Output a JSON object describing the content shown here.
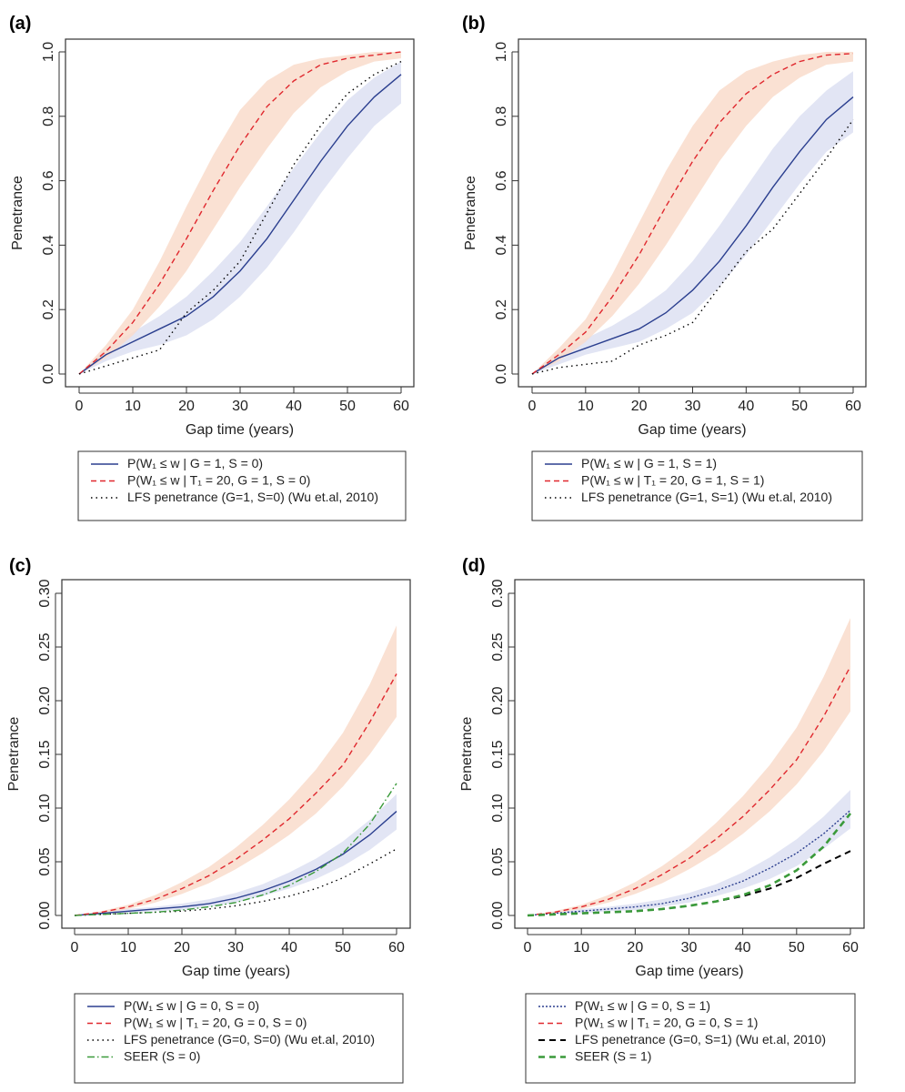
{
  "chart_data": [
    {
      "panel_label": "(a)",
      "type": "line",
      "xlabel": "Gap time (years)",
      "ylabel": "Penetrance",
      "xlim": [
        0,
        60
      ],
      "ylim": [
        0,
        1
      ],
      "xticks": [
        "0",
        "10",
        "20",
        "30",
        "40",
        "50",
        "60"
      ],
      "yticks": [
        "0.0",
        "0.2",
        "0.4",
        "0.6",
        "0.8",
        "1.0"
      ],
      "ytick_values": [
        0,
        0.2,
        0.4,
        0.6,
        0.8,
        1.0
      ],
      "x": [
        0,
        5,
        10,
        15,
        20,
        25,
        30,
        35,
        40,
        45,
        50,
        55,
        60
      ],
      "bands": [
        {
          "color": "#dde0f2",
          "lower": [
            0,
            0.04,
            0.07,
            0.09,
            0.12,
            0.17,
            0.24,
            0.33,
            0.44,
            0.56,
            0.67,
            0.77,
            0.84
          ],
          "upper": [
            0,
            0.08,
            0.13,
            0.18,
            0.24,
            0.32,
            0.41,
            0.52,
            0.64,
            0.75,
            0.85,
            0.92,
            0.97
          ]
        },
        {
          "color": "#f9dccb",
          "lower": [
            0,
            0.05,
            0.12,
            0.21,
            0.32,
            0.45,
            0.58,
            0.7,
            0.81,
            0.89,
            0.94,
            0.97,
            0.98
          ],
          "upper": [
            0,
            0.09,
            0.2,
            0.35,
            0.52,
            0.68,
            0.82,
            0.91,
            0.96,
            0.98,
            0.99,
            1.0,
            1.0
          ]
        }
      ],
      "series": [
        {
          "name": "P(W₁ ≤ w | G = 1, S = 0)",
          "color": "#2b3f8f",
          "style": "solid",
          "values": [
            0,
            0.06,
            0.1,
            0.14,
            0.18,
            0.24,
            0.32,
            0.42,
            0.54,
            0.66,
            0.77,
            0.86,
            0.93
          ]
        },
        {
          "name": "P(W₁ ≤ w | T₁ = 20, G = 1, S = 0)",
          "color": "#e0282e",
          "style": "dashed",
          "values": [
            0,
            0.07,
            0.16,
            0.28,
            0.42,
            0.57,
            0.71,
            0.83,
            0.91,
            0.96,
            0.98,
            0.99,
            1.0
          ]
        },
        {
          "name": "LFS penetrance (G=1, S=0) (Wu et.al, 2010)",
          "color": "#000000",
          "style": "dotted",
          "values": [
            0,
            0.025,
            0.05,
            0.075,
            0.19,
            0.26,
            0.35,
            0.5,
            0.65,
            0.77,
            0.87,
            0.93,
            0.97
          ]
        }
      ]
    },
    {
      "panel_label": "(b)",
      "type": "line",
      "xlabel": "Gap time (years)",
      "ylabel": "Penetrance",
      "xlim": [
        0,
        60
      ],
      "ylim": [
        0,
        1
      ],
      "xticks": [
        "0",
        "10",
        "20",
        "30",
        "40",
        "50",
        "60"
      ],
      "yticks": [
        "0.0",
        "0.2",
        "0.4",
        "0.6",
        "0.8",
        "1.0"
      ],
      "ytick_values": [
        0,
        0.2,
        0.4,
        0.6,
        0.8,
        1.0
      ],
      "x": [
        0,
        5,
        10,
        15,
        20,
        25,
        30,
        35,
        40,
        45,
        50,
        55,
        60
      ],
      "bands": [
        {
          "color": "#dde0f2",
          "lower": [
            0,
            0.03,
            0.06,
            0.08,
            0.1,
            0.14,
            0.19,
            0.27,
            0.37,
            0.48,
            0.59,
            0.69,
            0.75
          ],
          "upper": [
            0,
            0.07,
            0.11,
            0.15,
            0.2,
            0.26,
            0.35,
            0.46,
            0.58,
            0.7,
            0.8,
            0.88,
            0.94
          ]
        },
        {
          "color": "#f9dccb",
          "lower": [
            0,
            0.04,
            0.1,
            0.18,
            0.28,
            0.4,
            0.53,
            0.66,
            0.77,
            0.86,
            0.92,
            0.96,
            0.97
          ],
          "upper": [
            0,
            0.08,
            0.17,
            0.31,
            0.47,
            0.63,
            0.77,
            0.88,
            0.94,
            0.97,
            0.99,
            1.0,
            1.0
          ]
        }
      ],
      "series": [
        {
          "name": "P(W₁ ≤ w | G = 1, S = 1)",
          "color": "#2b3f8f",
          "style": "solid",
          "values": [
            0,
            0.05,
            0.08,
            0.11,
            0.14,
            0.19,
            0.26,
            0.35,
            0.46,
            0.58,
            0.69,
            0.79,
            0.86
          ]
        },
        {
          "name": "P(W₁ ≤ w | T₁ = 20, G = 1, S = 1)",
          "color": "#e0282e",
          "style": "dashed",
          "values": [
            0,
            0.06,
            0.13,
            0.24,
            0.37,
            0.52,
            0.66,
            0.78,
            0.87,
            0.93,
            0.97,
            0.99,
            0.995
          ]
        },
        {
          "name": "LFS penetrance (G=1, S=1) (Wu et.al, 2010)",
          "color": "#000000",
          "style": "dotted",
          "values": [
            0,
            0.02,
            0.03,
            0.04,
            0.09,
            0.12,
            0.16,
            0.27,
            0.38,
            0.45,
            0.56,
            0.67,
            0.79
          ]
        }
      ]
    },
    {
      "panel_label": "(c)",
      "type": "line",
      "xlabel": "Gap time (years)",
      "ylabel": "Penetrance",
      "xlim": [
        0,
        60
      ],
      "ylim": [
        0,
        0.3
      ],
      "xticks": [
        "0",
        "10",
        "20",
        "30",
        "40",
        "50",
        "60"
      ],
      "yticks": [
        "0.00",
        "0.05",
        "0.10",
        "0.15",
        "0.20",
        "0.25",
        "0.30"
      ],
      "ytick_values": [
        0,
        0.05,
        0.1,
        0.15,
        0.2,
        0.25,
        0.3
      ],
      "x": [
        0,
        5,
        10,
        15,
        20,
        25,
        30,
        35,
        40,
        45,
        50,
        55,
        60
      ],
      "bands": [
        {
          "color": "#dde0f2",
          "lower": [
            0,
            0.001,
            0.002,
            0.004,
            0.005,
            0.008,
            0.012,
            0.018,
            0.025,
            0.034,
            0.046,
            0.061,
            0.08
          ],
          "upper": [
            0,
            0.003,
            0.006,
            0.008,
            0.011,
            0.015,
            0.021,
            0.029,
            0.04,
            0.053,
            0.069,
            0.089,
            0.113
          ]
        },
        {
          "color": "#f9dccb",
          "lower": [
            0,
            0.002,
            0.006,
            0.012,
            0.02,
            0.03,
            0.043,
            0.058,
            0.075,
            0.095,
            0.12,
            0.15,
            0.185
          ],
          "upper": [
            0,
            0.004,
            0.01,
            0.019,
            0.031,
            0.045,
            0.063,
            0.084,
            0.108,
            0.136,
            0.17,
            0.215,
            0.27
          ]
        }
      ],
      "series": [
        {
          "name": "P(W₁ ≤ w | G = 0, S = 0)",
          "color": "#2b3f8f",
          "style": "solid",
          "values": [
            0,
            0.002,
            0.004,
            0.006,
            0.008,
            0.011,
            0.016,
            0.023,
            0.032,
            0.043,
            0.057,
            0.075,
            0.097
          ]
        },
        {
          "name": "P(W₁ ≤ w | T₁ = 20, G = 0, S = 0)",
          "color": "#e0282e",
          "style": "dashed",
          "values": [
            0,
            0.003,
            0.008,
            0.015,
            0.025,
            0.037,
            0.052,
            0.07,
            0.09,
            0.114,
            0.14,
            0.18,
            0.225
          ]
        },
        {
          "name": "LFS penetrance (G=0, S=0) (Wu et.al, 2010)",
          "color": "#000000",
          "style": "dotted",
          "values": [
            0,
            0.001,
            0.002,
            0.003,
            0.004,
            0.006,
            0.009,
            0.013,
            0.018,
            0.025,
            0.035,
            0.048,
            0.062
          ]
        },
        {
          "name": "SEER (S = 0)",
          "color": "#3a9a3a",
          "style": "dashdot",
          "values": [
            0,
            0.001,
            0.002,
            0.003,
            0.005,
            0.008,
            0.012,
            0.019,
            0.028,
            0.041,
            0.058,
            0.085,
            0.123
          ]
        }
      ]
    },
    {
      "panel_label": "(d)",
      "type": "line",
      "xlabel": "Gap time (years)",
      "ylabel": "Penetrance",
      "xlim": [
        0,
        60
      ],
      "ylim": [
        0,
        0.3
      ],
      "xticks": [
        "0",
        "10",
        "20",
        "30",
        "40",
        "50",
        "60"
      ],
      "yticks": [
        "0.00",
        "0.05",
        "0.10",
        "0.15",
        "0.20",
        "0.25",
        "0.30"
      ],
      "ytick_values": [
        0,
        0.05,
        0.1,
        0.15,
        0.2,
        0.25,
        0.3
      ],
      "x": [
        0,
        5,
        10,
        15,
        20,
        25,
        30,
        35,
        40,
        45,
        50,
        55,
        60
      ],
      "bands": [
        {
          "color": "#dde0f2",
          "lower": [
            0,
            0.001,
            0.002,
            0.004,
            0.005,
            0.008,
            0.012,
            0.018,
            0.025,
            0.034,
            0.046,
            0.062,
            0.081
          ],
          "upper": [
            0,
            0.003,
            0.006,
            0.008,
            0.011,
            0.015,
            0.021,
            0.029,
            0.04,
            0.054,
            0.071,
            0.092,
            0.117
          ]
        },
        {
          "color": "#f9dccb",
          "lower": [
            0,
            0.002,
            0.006,
            0.012,
            0.02,
            0.03,
            0.043,
            0.058,
            0.076,
            0.097,
            0.122,
            0.153,
            0.19
          ],
          "upper": [
            0,
            0.004,
            0.01,
            0.019,
            0.031,
            0.046,
            0.064,
            0.086,
            0.111,
            0.14,
            0.175,
            0.222,
            0.277
          ]
        }
      ],
      "series": [
        {
          "name": "P(W₁ ≤ w | G = 0, S = 1)",
          "color": "#2b3f8f",
          "style": "dotted-short",
          "values": [
            0,
            0.002,
            0.004,
            0.006,
            0.008,
            0.011,
            0.016,
            0.023,
            0.032,
            0.044,
            0.058,
            0.076,
            0.098
          ]
        },
        {
          "name": "P(W₁ ≤ w | T₁ = 20, G = 0, S = 1)",
          "color": "#e0282e",
          "style": "dashed",
          "values": [
            0,
            0.003,
            0.008,
            0.015,
            0.025,
            0.038,
            0.053,
            0.071,
            0.092,
            0.117,
            0.145,
            0.185,
            0.232
          ]
        },
        {
          "name": "LFS penetrance (G=0, S=1) (Wu et.al, 2010)",
          "color": "#000000",
          "style": "longdash",
          "values": [
            0,
            0.001,
            0.002,
            0.003,
            0.004,
            0.006,
            0.009,
            0.013,
            0.018,
            0.025,
            0.035,
            0.048,
            0.06
          ]
        },
        {
          "name": "SEER (S = 1)",
          "color": "#3a9a3a",
          "style": "longdash-thick",
          "values": [
            0,
            0.001,
            0.002,
            0.003,
            0.004,
            0.006,
            0.009,
            0.013,
            0.019,
            0.028,
            0.042,
            0.064,
            0.095
          ]
        }
      ]
    }
  ]
}
